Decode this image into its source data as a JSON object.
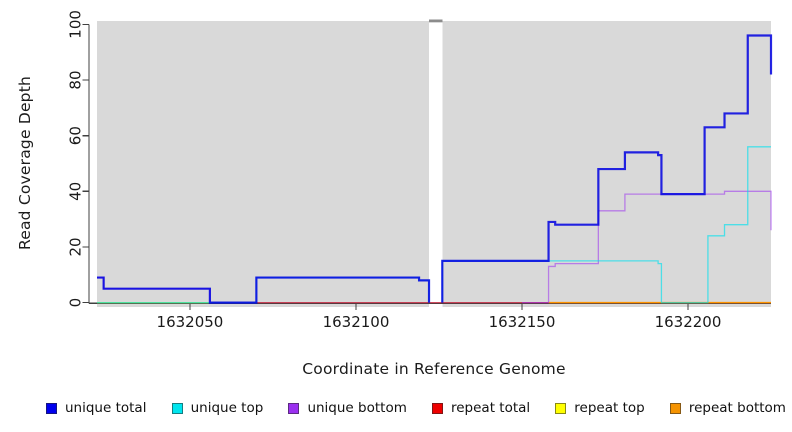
{
  "chart_data": {
    "type": "line",
    "step": true,
    "title": "",
    "xlabel": "Coordinate in Reference Genome",
    "ylabel": "Read Coverage Depth",
    "xlim": [
      1632022,
      1632225
    ],
    "ylim": [
      0,
      100
    ],
    "x_ticks": [
      1632050,
      1632100,
      1632150,
      1632200
    ],
    "y_ticks": [
      0,
      20,
      40,
      60,
      80,
      100
    ],
    "grid": "off",
    "panel_bg": "#D9D9D9",
    "axis_color": "#404040",
    "gap_region": {
      "from": 1632122,
      "to": 1632126,
      "cap_color": "#8C8C8C"
    },
    "legend_position": "bottom",
    "series": [
      {
        "name": "repeat top",
        "color": "#EEEE00",
        "legend_color": "#FFFF00",
        "opacity": 0.9,
        "width": 1.2,
        "segments": [
          [
            [
              1632022,
              0
            ],
            [
              1632070,
              0
            ]
          ]
        ]
      },
      {
        "name": "repeat total",
        "color": "#EE1133",
        "legend_color": "#EE0000",
        "opacity": 0.6,
        "width": 1.3,
        "segments": [
          [
            [
              1632070,
              0
            ],
            [
              1632225,
              0
            ]
          ]
        ]
      },
      {
        "name": "repeat bottom",
        "color": "#FF9500",
        "legend_color": "#F59300",
        "opacity": 1.0,
        "width": 1.4,
        "segments": [
          [
            [
              1632158,
              0
            ],
            [
              1632225,
              0
            ]
          ]
        ]
      },
      {
        "name": "unique bottom",
        "color": "#9B30F0",
        "legend_color": "#9B30F0",
        "opacity": 0.55,
        "width": 1.3,
        "segments": [
          [
            [
              1632022,
              9
            ],
            [
              1632024,
              5
            ],
            [
              1632056,
              0
            ],
            [
              1632070,
              0
            ]
          ],
          [
            [
              1632150,
              0
            ],
            [
              1632158,
              13
            ],
            [
              1632160,
              14
            ],
            [
              1632173,
              33
            ],
            [
              1632181,
              39
            ],
            [
              1632211,
              40
            ],
            [
              1632225,
              26
            ]
          ]
        ]
      },
      {
        "name": "unique top",
        "color": "#00E0EE",
        "legend_color": "#00E5EE",
        "opacity": 0.65,
        "width": 1.3,
        "segments": [
          [
            [
              1632022,
              0
            ],
            [
              1632070,
              9
            ],
            [
              1632119,
              8
            ],
            [
              1632122,
              0
            ]
          ],
          [
            [
              1632126,
              0
            ],
            [
              1632126,
              15
            ],
            [
              1632191,
              14
            ],
            [
              1632192,
              0
            ],
            [
              1632206,
              24
            ],
            [
              1632211,
              28
            ],
            [
              1632218,
              56
            ],
            [
              1632225,
              56
            ]
          ]
        ]
      },
      {
        "name": "unique total",
        "color": "#0000E0",
        "legend_color": "#0000EE",
        "opacity": 0.85,
        "width": 2.2,
        "segments": [
          [
            [
              1632022,
              9
            ],
            [
              1632024,
              5
            ],
            [
              1632056,
              0
            ],
            [
              1632070,
              9
            ],
            [
              1632119,
              8
            ],
            [
              1632122,
              0
            ]
          ],
          [
            [
              1632126,
              0
            ],
            [
              1632126,
              15
            ],
            [
              1632158,
              29
            ],
            [
              1632160,
              28
            ],
            [
              1632173,
              48
            ],
            [
              1632181,
              54
            ],
            [
              1632191,
              53
            ],
            [
              1632192,
              39
            ],
            [
              1632205,
              63
            ],
            [
              1632211,
              68
            ],
            [
              1632218,
              96
            ],
            [
              1632225,
              82
            ]
          ]
        ]
      }
    ],
    "legend": [
      {
        "label": "unique total",
        "color": "#0000EE"
      },
      {
        "label": "unique top",
        "color": "#00E5EE"
      },
      {
        "label": "unique bottom",
        "color": "#9B30F0"
      },
      {
        "label": "repeat total",
        "color": "#EE0000"
      },
      {
        "label": "repeat top",
        "color": "#FFFF00"
      },
      {
        "label": "repeat bottom",
        "color": "#F59300"
      }
    ]
  }
}
